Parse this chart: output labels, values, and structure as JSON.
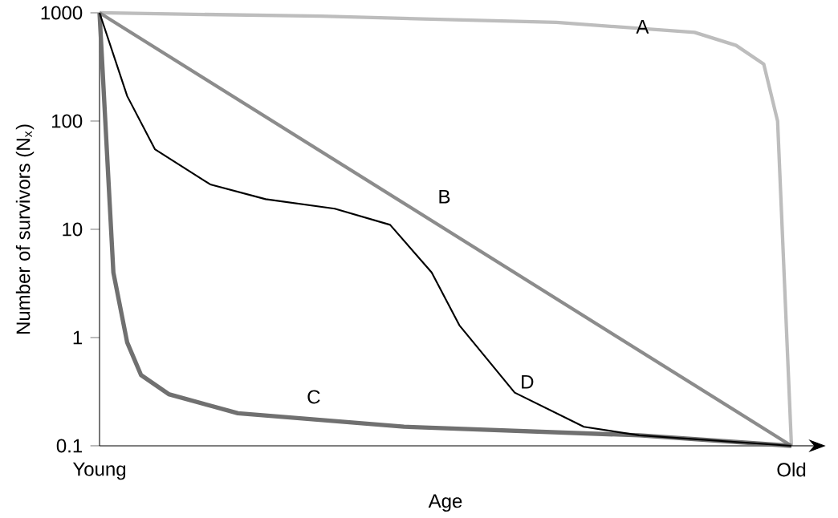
{
  "chart_data": {
    "type": "line",
    "xlabel": "Age",
    "ylabel": "Number of survivors (N$_{x}$)",
    "log": "y",
    "categories": [
      "Young",
      null,
      null,
      null,
      null,
      null,
      null,
      null,
      null,
      null,
      null,
      null,
      null,
      null,
      null,
      null,
      null,
      null,
      null,
      null,
      null,
      null,
      null,
      null,
      null,
      null,
      null,
      null,
      null,
      null,
      null,
      null,
      null,
      null,
      null,
      null,
      null,
      null,
      null,
      null,
      null,
      null,
      null,
      null,
      null,
      null,
      null,
      null,
      null,
      null,
      "Old"
    ],
    "ylim": [
      0.1,
      1000
    ],
    "yticks": [
      0.1,
      1,
      10,
      100,
      1000
    ],
    "grid": false,
    "legend": false,
    "marker": "none",
    "line_style": "solid",
    "series": [
      {
        "name": "A",
        "color": "#bdbdbd",
        "values": [
          1000,
          null,
          null,
          null,
          null,
          null,
          null,
          null,
          null,
          null,
          null,
          null,
          null,
          null,
          null,
          null,
          930,
          null,
          null,
          null,
          null,
          null,
          null,
          null,
          null,
          null,
          null,
          null,
          null,
          null,
          null,
          null,
          null,
          815,
          null,
          null,
          null,
          null,
          null,
          null,
          null,
          null,
          null,
          660,
          null,
          null,
          500,
          null,
          335,
          100,
          0.1
        ]
      },
      {
        "name": "B",
        "color": "#8c8c8c",
        "values": [
          1000,
          null,
          null,
          null,
          null,
          null,
          null,
          null,
          null,
          null,
          null,
          null,
          null,
          null,
          null,
          null,
          null,
          null,
          null,
          null,
          null,
          null,
          null,
          null,
          null,
          null,
          null,
          null,
          null,
          null,
          null,
          null,
          null,
          null,
          null,
          null,
          null,
          null,
          null,
          null,
          null,
          null,
          null,
          null,
          null,
          null,
          null,
          null,
          null,
          null,
          0.1
        ]
      },
      {
        "name": "C",
        "color": "#707070",
        "values": [
          1000,
          4,
          0.9,
          0.45,
          null,
          0.3,
          null,
          null,
          null,
          null,
          0.2,
          null,
          null,
          null,
          null,
          null,
          null,
          null,
          null,
          null,
          null,
          null,
          0.15,
          null,
          null,
          null,
          null,
          null,
          null,
          null,
          null,
          null,
          null,
          null,
          null,
          null,
          null,
          null,
          null,
          0.125,
          null,
          null,
          null,
          null,
          null,
          null,
          null,
          null,
          null,
          null,
          0.1
        ]
      },
      {
        "name": "D",
        "color": "#000000",
        "values": [
          1000,
          null,
          170,
          null,
          55,
          null,
          null,
          null,
          26,
          null,
          null,
          null,
          19,
          null,
          null,
          null,
          null,
          15.5,
          null,
          null,
          null,
          11,
          null,
          null,
          4,
          null,
          1.3,
          null,
          null,
          null,
          0.31,
          null,
          null,
          null,
          null,
          0.15,
          null,
          null,
          null,
          0.125,
          null,
          null,
          null,
          null,
          null,
          null,
          null,
          null,
          null,
          null,
          0.1
        ]
      }
    ]
  }
}
